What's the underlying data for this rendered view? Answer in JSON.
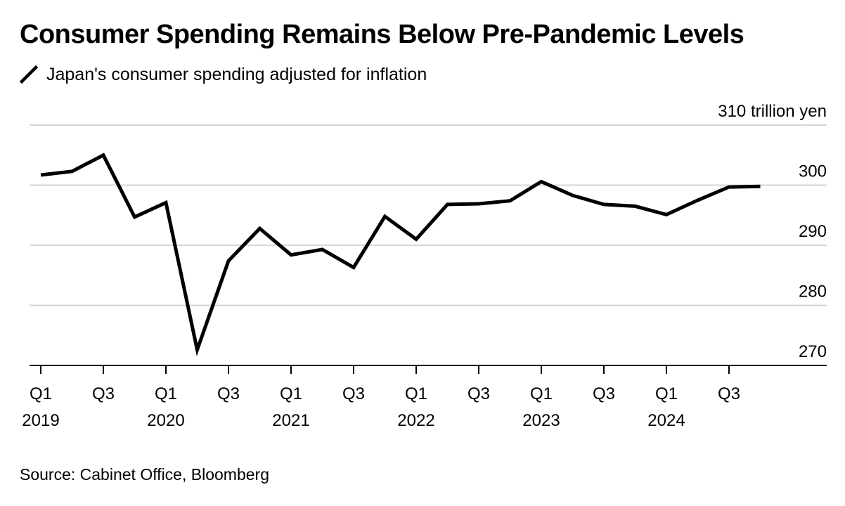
{
  "title": "Consumer Spending Remains Below Pre-Pandemic Levels",
  "legend": {
    "label": "Japan's consumer spending adjusted for inflation",
    "color": "#000000"
  },
  "source": "Source: Cabinet Office, Bloomberg",
  "chart_data": {
    "type": "line",
    "title": "Consumer Spending Remains Below Pre-Pandemic Levels",
    "ylabel": "310 trillion yen",
    "ylim": [
      270,
      310
    ],
    "y_ticks": [
      {
        "value": 310,
        "label": "310 trillion yen"
      },
      {
        "value": 300,
        "label": "300"
      },
      {
        "value": 290,
        "label": "290"
      },
      {
        "value": 280,
        "label": "280"
      },
      {
        "value": 270,
        "label": "270"
      }
    ],
    "x_ticks": [
      {
        "quarter": "Q1",
        "year": "2019"
      },
      {
        "quarter": "Q3",
        "year": ""
      },
      {
        "quarter": "Q1",
        "year": "2020"
      },
      {
        "quarter": "Q3",
        "year": ""
      },
      {
        "quarter": "Q1",
        "year": "2021"
      },
      {
        "quarter": "Q3",
        "year": ""
      },
      {
        "quarter": "Q1",
        "year": "2022"
      },
      {
        "quarter": "Q3",
        "year": ""
      },
      {
        "quarter": "Q1",
        "year": "2023"
      },
      {
        "quarter": "Q3",
        "year": ""
      },
      {
        "quarter": "Q1",
        "year": "2024"
      },
      {
        "quarter": "Q3",
        "year": ""
      }
    ],
    "x": [
      "2019 Q1",
      "2019 Q2",
      "2019 Q3",
      "2019 Q4",
      "2020 Q1",
      "2020 Q2",
      "2020 Q3",
      "2020 Q4",
      "2021 Q1",
      "2021 Q2",
      "2021 Q3",
      "2021 Q4",
      "2022 Q1",
      "2022 Q2",
      "2022 Q3",
      "2022 Q4",
      "2023 Q1",
      "2023 Q2",
      "2023 Q3",
      "2023 Q4",
      "2024 Q1",
      "2024 Q2",
      "2024 Q3",
      "2024 Q4"
    ],
    "series": [
      {
        "name": "Japan's consumer spending adjusted for inflation",
        "color": "#000000",
        "values": [
          301.7,
          302.3,
          305.0,
          294.7,
          297.1,
          272.6,
          287.4,
          292.8,
          288.4,
          289.3,
          286.3,
          294.8,
          291.0,
          296.8,
          296.9,
          297.4,
          300.6,
          298.3,
          296.8,
          296.5,
          295.1,
          297.5,
          299.7,
          299.8
        ]
      }
    ],
    "grid": true,
    "legend_position": "top-left"
  }
}
